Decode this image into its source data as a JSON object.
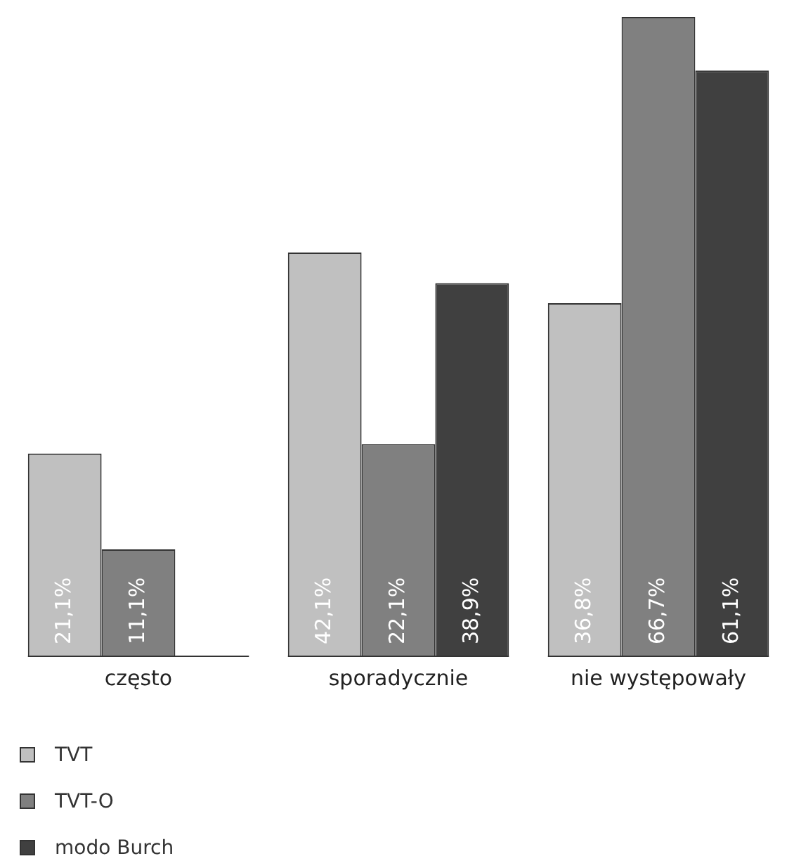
{
  "chart_data": {
    "type": "bar",
    "categories": [
      "często",
      "sporadycznie",
      "nie występowały"
    ],
    "series": [
      {
        "name": "TVT",
        "color": "#c0c0c0",
        "values": [
          21.1,
          42.1,
          36.8
        ],
        "value_labels": [
          "21,1%",
          "42,1%",
          "36,8%"
        ]
      },
      {
        "name": "TVT-O",
        "color": "#808080",
        "values": [
          11.1,
          22.1,
          66.7
        ],
        "value_labels": [
          "11,1%",
          "22,1%",
          "66,7%"
        ]
      },
      {
        "name": "modo Burch",
        "color": "#404040",
        "values": [
          null,
          38.9,
          61.1
        ],
        "value_labels": [
          null,
          "38,9%",
          "61,1%"
        ]
      }
    ],
    "legend": "bottom left",
    "grid": false
  }
}
